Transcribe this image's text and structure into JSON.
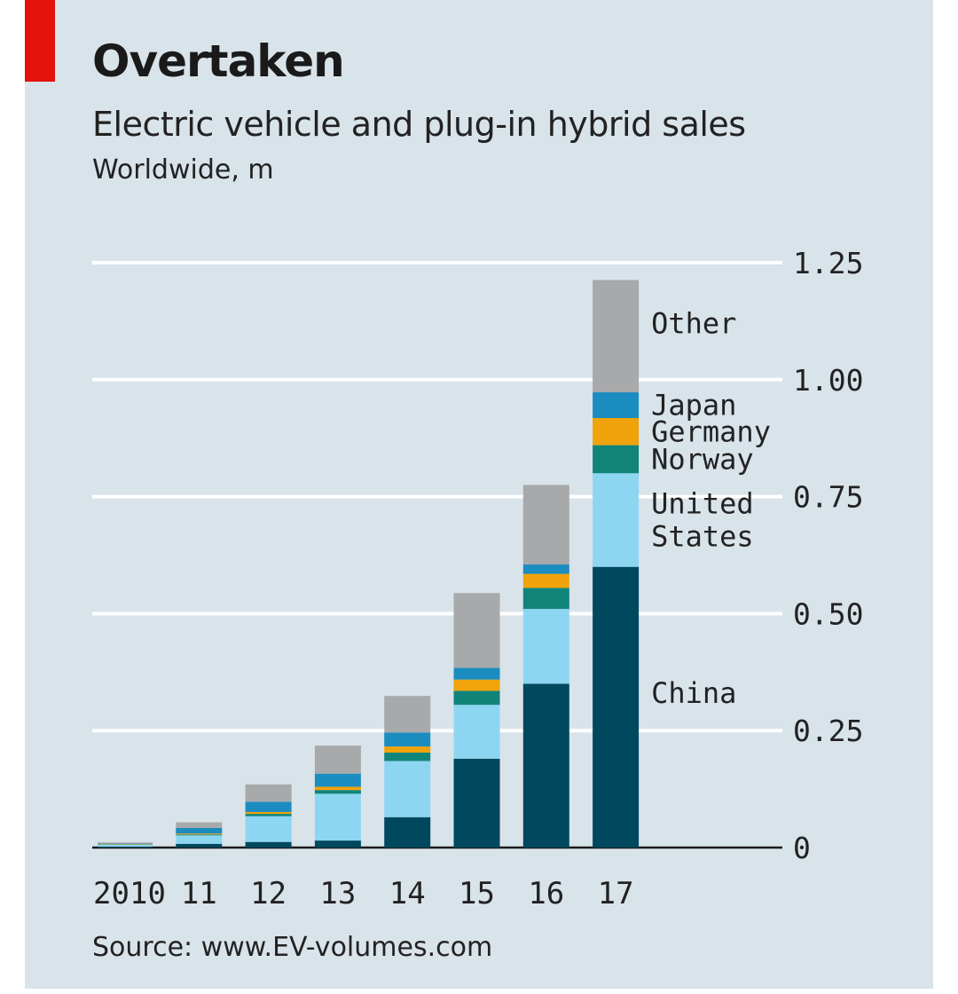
{
  "header": {
    "title": "Overtaken",
    "subtitle": "Electric vehicle and plug-in hybrid sales",
    "units": "Worldwide, m"
  },
  "footer": {
    "source": "Source: www.EV-volumes.com"
  },
  "colors": {
    "background": "#d9e3ea",
    "accent": "#e3120b",
    "China": "#00485e",
    "United States": "#8dd6f2",
    "Norway": "#11847a",
    "Germany": "#f0a30a",
    "Japan": "#1b8cbf",
    "Other": "#a7a9ab"
  },
  "chart_data": {
    "type": "bar",
    "stacked": true,
    "title": "Overtaken",
    "subtitle": "Electric vehicle and plug-in hybrid sales",
    "ylabel": "Worldwide, m",
    "xlabel": "",
    "categories": [
      "2010",
      "11",
      "12",
      "13",
      "14",
      "15",
      "16",
      "17"
    ],
    "ylim": [
      0,
      1.25
    ],
    "yticks": [
      0,
      0.25,
      0.5,
      0.75,
      1.0,
      1.25
    ],
    "ytick_labels": [
      "0",
      "0.25",
      "0.50",
      "0.75",
      "1.00",
      "1.25"
    ],
    "grid": true,
    "yaxis_position": "right",
    "legend_position": "inline-right",
    "series": [
      {
        "name": "China",
        "label": "China",
        "values": [
          0.002,
          0.008,
          0.012,
          0.015,
          0.065,
          0.19,
          0.35,
          0.6
        ]
      },
      {
        "name": "United States",
        "label": "United States",
        "values": [
          0.004,
          0.018,
          0.055,
          0.1,
          0.12,
          0.115,
          0.16,
          0.2
        ]
      },
      {
        "name": "Norway",
        "label": "Norway",
        "values": [
          0.001,
          0.002,
          0.005,
          0.008,
          0.018,
          0.03,
          0.045,
          0.06
        ]
      },
      {
        "name": "Germany",
        "label": "Germany",
        "values": [
          0.001,
          0.002,
          0.004,
          0.007,
          0.013,
          0.024,
          0.03,
          0.058
        ]
      },
      {
        "name": "Japan",
        "label": "Japan",
        "values": [
          0.001,
          0.012,
          0.022,
          0.028,
          0.03,
          0.025,
          0.02,
          0.055
        ]
      },
      {
        "name": "Other",
        "label": "Other",
        "values": [
          0.002,
          0.012,
          0.037,
          0.06,
          0.078,
          0.16,
          0.17,
          0.24
        ]
      }
    ]
  }
}
